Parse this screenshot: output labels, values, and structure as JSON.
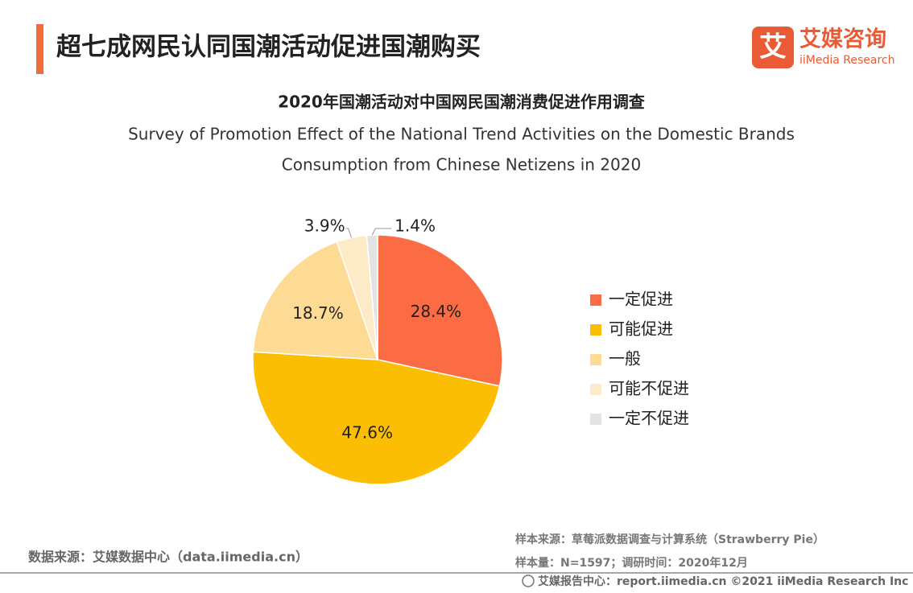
{
  "header": {
    "title": "超七成网民认同国潮活动促进国潮购买",
    "logo_icon": "艾",
    "logo_cn": "艾媒咨询",
    "logo_en": "iiMedia Research"
  },
  "chart_data": {
    "type": "pie",
    "title": "2020年国潮活动对中国网民国潮消费促进作用调查",
    "subtitle": [
      "Survey of Promotion Effect of the National Trend Activities on the Domestic Brands",
      "Consumption from Chinese Netizens in 2020"
    ],
    "categories": [
      "一定促进",
      "可能促进",
      "一般",
      "可能不促进",
      "一定不促进"
    ],
    "values": [
      28.4,
      47.6,
      18.7,
      3.9,
      1.4
    ],
    "value_labels": [
      "28.4%",
      "47.6%",
      "18.7%",
      "3.9%",
      "1.4%"
    ],
    "colors": [
      "#fb6c45",
      "#fbbe02",
      "#fddb95",
      "#fdebc8",
      "#e3e3e3"
    ],
    "legend": "right"
  },
  "footer": {
    "source": "数据来源：艾媒数据中心（data.iimedia.cn）",
    "sample_source": "样本来源：草莓派数据调查与计算系统（Strawberry Pie）",
    "sample_size": "样本量：N=1597；调研时间：2020年12月",
    "copyright": "艾媒报告中心：report.iimedia.cn    ©2021  iiMedia Research  Inc"
  }
}
